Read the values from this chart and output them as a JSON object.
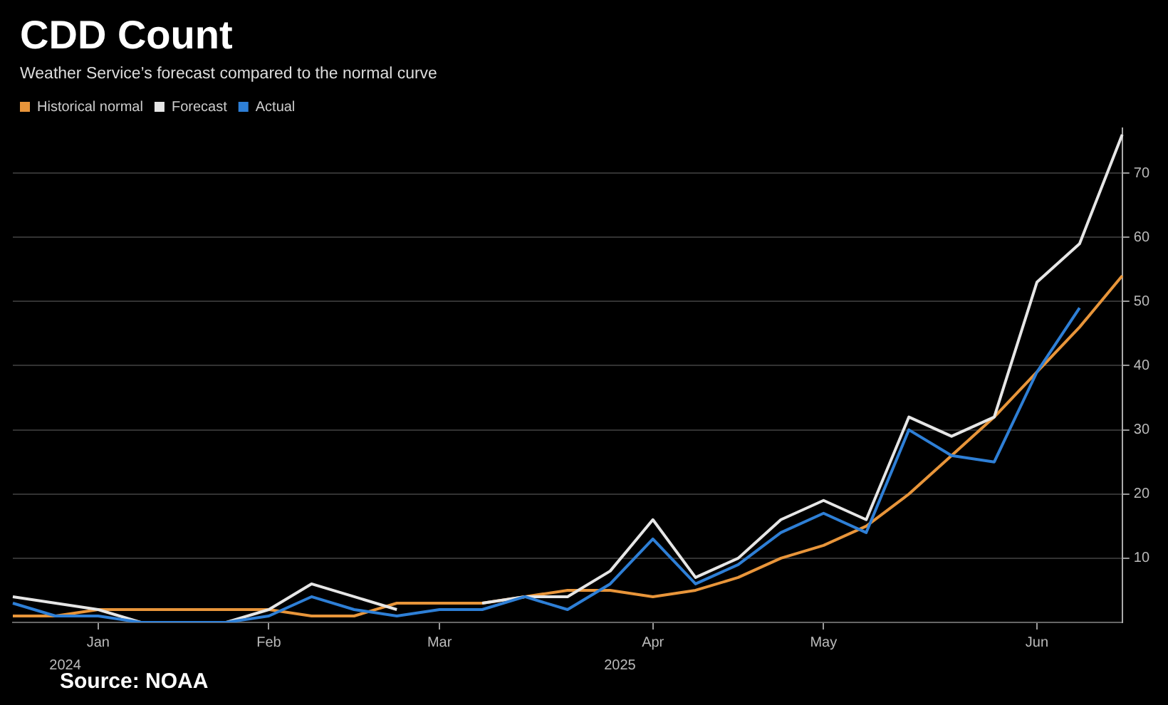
{
  "chart_data": {
    "type": "line",
    "title": "CDD Count",
    "subtitle": "Weather Service’s forecast compared to the normal curve",
    "categories": [
      null,
      null,
      "Jan",
      null,
      null,
      null,
      "Feb",
      null,
      null,
      null,
      "Mar",
      null,
      null,
      null,
      null,
      "Apr",
      null,
      null,
      null,
      "May",
      null,
      null,
      null,
      null,
      "Jun",
      null,
      null
    ],
    "series": [
      {
        "name": "Historical normal",
        "color": "#e8953a",
        "values": [
          1,
          1,
          2,
          2,
          2,
          2,
          2,
          1,
          1,
          3,
          3,
          3,
          4,
          5,
          5,
          4,
          5,
          7,
          10,
          12,
          15,
          20,
          26,
          32,
          39,
          46,
          54
        ]
      },
      {
        "name": "Forecast",
        "color": "#e6e6e6",
        "values": [
          4,
          3,
          2,
          0,
          0,
          0,
          2,
          6,
          4,
          2,
          null,
          3,
          4,
          4,
          8,
          16,
          7,
          10,
          16,
          19,
          16,
          32,
          29,
          32,
          53,
          59,
          76
        ]
      },
      {
        "name": "Actual",
        "color": "#2e7fd6",
        "values": [
          3,
          1,
          1,
          0,
          0,
          0,
          1,
          4,
          2,
          1,
          2,
          2,
          4,
          2,
          6,
          13,
          6,
          9,
          14,
          17,
          14,
          30,
          26,
          25,
          39,
          49,
          null
        ]
      }
    ],
    "ylim": [
      0,
      77
    ],
    "yticks": [
      10,
      20,
      30,
      40,
      50,
      60,
      70
    ],
    "grid": "y",
    "legend": "top left",
    "marker": "none",
    "line_style": "solid",
    "annotations": [
      "2024",
      "2025",
      "Source: NOAA"
    ]
  }
}
